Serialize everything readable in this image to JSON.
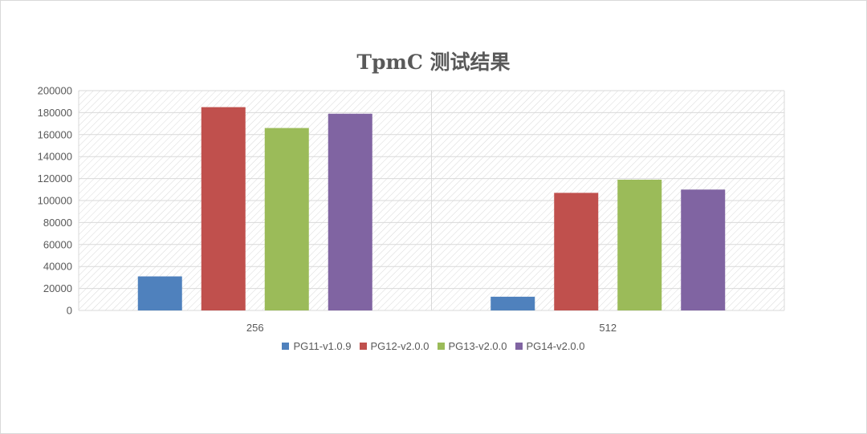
{
  "chart_data": {
    "type": "bar",
    "title": "TpmC 测试结果",
    "categories": [
      "256",
      "512"
    ],
    "ylim": [
      0,
      200000
    ],
    "yticks": [
      0,
      20000,
      40000,
      60000,
      80000,
      100000,
      120000,
      140000,
      160000,
      180000,
      200000
    ],
    "grid": true,
    "legend_position": "bottom",
    "series": [
      {
        "name": "PG11-v1.0.9",
        "color": "#4f81bd",
        "values": [
          31000,
          12500
        ]
      },
      {
        "name": "PG12-v2.0.0",
        "color": "#c0504d",
        "values": [
          185000,
          107000
        ]
      },
      {
        "name": "PG13-v2.0.0",
        "color": "#9bbb59",
        "values": [
          166000,
          119000
        ]
      },
      {
        "name": "PG14-v2.0.0",
        "color": "#8064a2",
        "values": [
          179000,
          110000
        ]
      }
    ]
  }
}
